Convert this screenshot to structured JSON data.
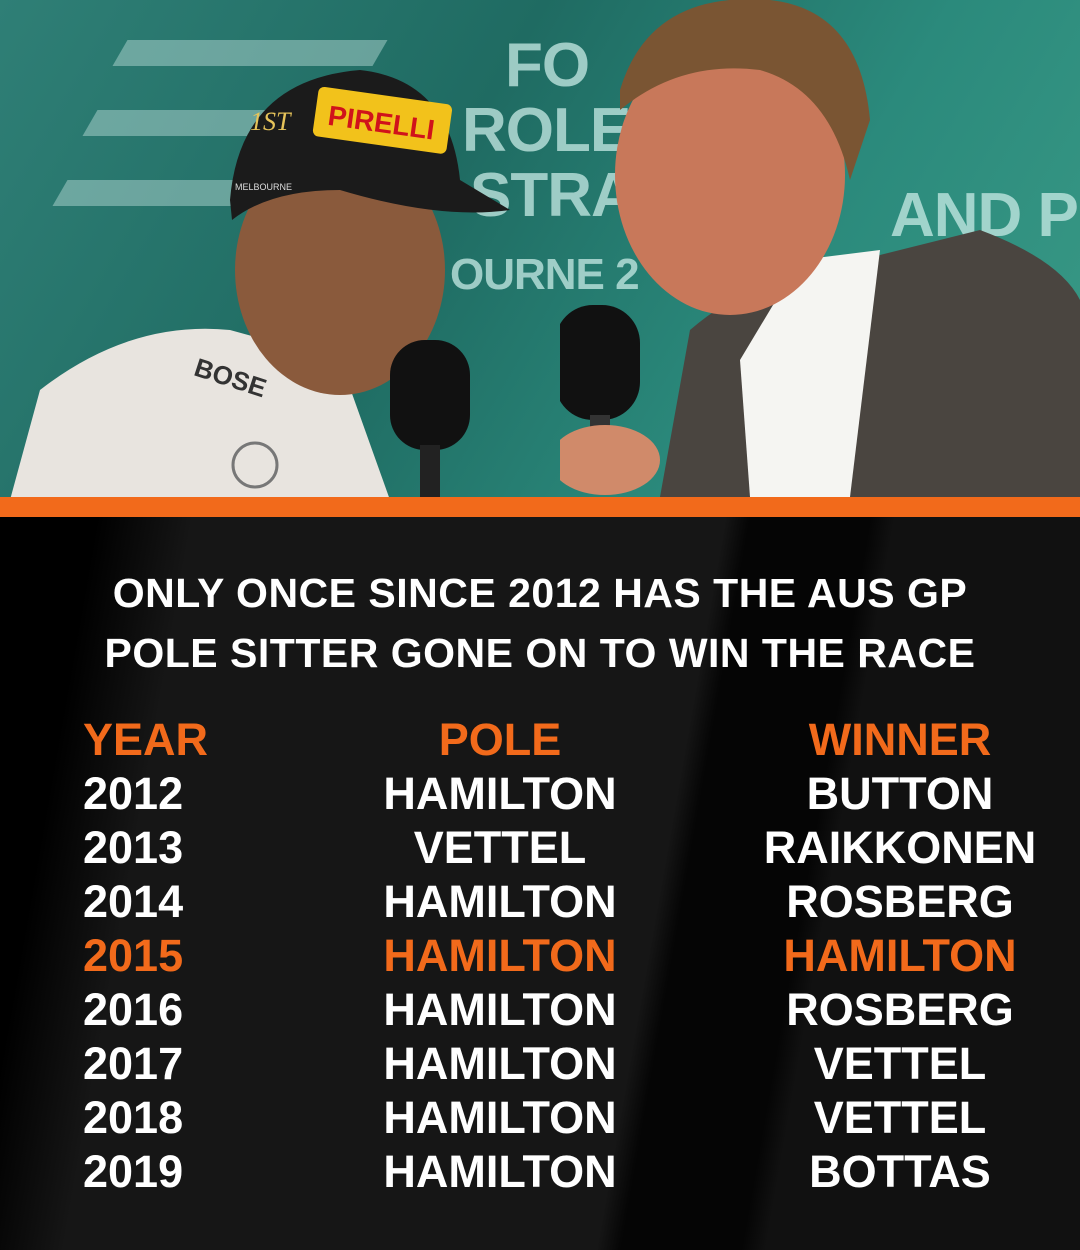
{
  "photo": {
    "backdrop_text": [
      "FO",
      "ROLE",
      "STRA",
      "AND P",
      "OURNE 2"
    ],
    "cap_text": [
      "1ST",
      "PIRELLI",
      "MELBOURNE"
    ],
    "suit_text": "BOSE"
  },
  "colors": {
    "accent": "#f26a1b",
    "text": "#ffffff",
    "background": "#0c0c0c"
  },
  "headline": {
    "line1": "ONLY ONCE SINCE 2012 HAS THE AUS GP",
    "line2": "POLE SITTER GONE ON TO WIN THE RACE"
  },
  "table": {
    "headers": {
      "year": "YEAR",
      "pole": "POLE",
      "winner": "WINNER"
    },
    "rows": [
      {
        "year": "2012",
        "pole": "HAMILTON",
        "winner": "BUTTON",
        "highlight": false
      },
      {
        "year": "2013",
        "pole": "VETTEL",
        "winner": "RAIKKONEN",
        "highlight": false
      },
      {
        "year": "2014",
        "pole": "HAMILTON",
        "winner": "ROSBERG",
        "highlight": false
      },
      {
        "year": "2015",
        "pole": "HAMILTON",
        "winner": "HAMILTON",
        "highlight": true
      },
      {
        "year": "2016",
        "pole": "HAMILTON",
        "winner": "ROSBERG",
        "highlight": false
      },
      {
        "year": "2017",
        "pole": "HAMILTON",
        "winner": "VETTEL",
        "highlight": false
      },
      {
        "year": "2018",
        "pole": "HAMILTON",
        "winner": "VETTEL",
        "highlight": false
      },
      {
        "year": "2019",
        "pole": "HAMILTON",
        "winner": "BOTTAS",
        "highlight": false
      }
    ]
  }
}
